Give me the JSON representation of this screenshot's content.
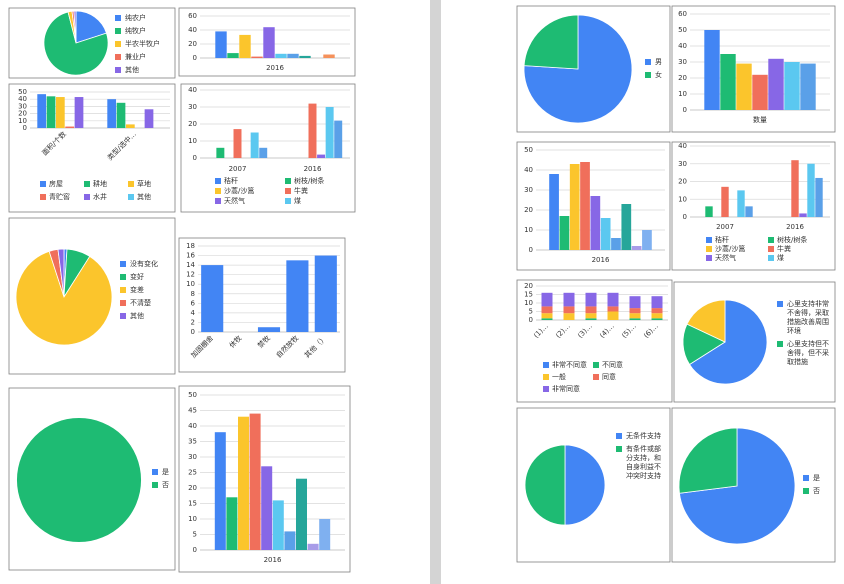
{
  "chart_data": [
    {
      "type": "pie",
      "categories": [
        "纯农户",
        "纯牧户",
        "半农半牧户",
        "兼业户",
        "其他"
      ],
      "values": [
        20,
        76,
        2,
        1,
        1
      ],
      "colors": [
        "#4285f4",
        "#1ebb73",
        "#fbc52c",
        "#f06f5b",
        "#8767e6"
      ],
      "legend": "right"
    },
    {
      "type": "bar",
      "categories": [
        "2016"
      ],
      "ylim": [
        0,
        60
      ],
      "yticks": [
        0,
        20,
        40,
        60
      ],
      "grid": true,
      "series": [
        {
          "color": "#4285f4",
          "values": [
            38
          ]
        },
        {
          "color": "#1ebb73",
          "values": [
            7
          ]
        },
        {
          "color": "#fbc52c",
          "values": [
            33
          ]
        },
        {
          "color": "#f06f5b",
          "values": [
            2
          ]
        },
        {
          "color": "#8767e6",
          "values": [
            44
          ]
        },
        {
          "color": "#5bc8f0",
          "values": [
            6
          ]
        },
        {
          "color": "#5aa0e8",
          "values": [
            6
          ]
        },
        {
          "color": "#26a69a",
          "values": [
            3
          ]
        },
        {
          "color": "#a89ce8",
          "values": [
            0
          ]
        },
        {
          "color": "#f5915b",
          "values": [
            5
          ]
        }
      ]
    },
    {
      "type": "bar",
      "categories": [
        "面积/个数",
        "类型/选中..."
      ],
      "ylim": [
        0,
        50
      ],
      "yticks": [
        0,
        10,
        20,
        30,
        40,
        50
      ],
      "grid": true,
      "rotate_labels": true,
      "legend": "bottom",
      "series": [
        {
          "name": "房屋",
          "color": "#4285f4",
          "values": [
            47,
            40
          ]
        },
        {
          "name": "耕地",
          "color": "#1ebb73",
          "values": [
            44,
            35
          ]
        },
        {
          "name": "草地",
          "color": "#fbc52c",
          "values": [
            43,
            5
          ]
        },
        {
          "name": "青贮窖",
          "color": "#f06f5b",
          "values": [
            2,
            0
          ]
        },
        {
          "name": "水井",
          "color": "#8767e6",
          "values": [
            43,
            26
          ]
        },
        {
          "name": "其他",
          "color": "#5bc8f0",
          "values": [
            0,
            0
          ]
        }
      ]
    },
    {
      "type": "bar",
      "categories": [
        "2007",
        "2016"
      ],
      "ylim": [
        0,
        40
      ],
      "yticks": [
        0,
        10,
        20,
        30,
        40
      ],
      "grid": true,
      "legend": "bottom",
      "series": [
        {
          "name": "秸秆",
          "color": "#4285f4",
          "values": [
            0,
            0
          ]
        },
        {
          "name": "树枝/树条",
          "color": "#1ebb73",
          "values": [
            6,
            0
          ]
        },
        {
          "name": "沙蒿/沙篙",
          "color": "#fbc52c",
          "values": [
            0,
            0
          ]
        },
        {
          "name": "牛粪",
          "color": "#f06f5b",
          "values": [
            17,
            32
          ]
        },
        {
          "name": "天然气",
          "color": "#8767e6",
          "values": [
            0,
            2
          ]
        },
        {
          "name": "煤",
          "color": "#5bc8f0",
          "values": [
            15,
            30
          ]
        },
        {
          "color": "#5aa0e8",
          "values": [
            6,
            22
          ]
        }
      ]
    },
    {
      "type": "pie",
      "categories": [
        "没有变化",
        "变好",
        "变差",
        "不清楚",
        "其他"
      ],
      "values": [
        1,
        8,
        86,
        3,
        2
      ],
      "colors": [
        "#4285f4",
        "#1ebb73",
        "#fbc52c",
        "#f06f5b",
        "#8767e6"
      ],
      "legend": "right"
    },
    {
      "type": "bar",
      "categories": [
        "加固棚舍",
        "休牧",
        "禁牧",
        "自然放牧",
        "其他（）"
      ],
      "ylim": [
        0,
        18
      ],
      "yticks": [
        0,
        2,
        4,
        6,
        8,
        10,
        12,
        14,
        16,
        18
      ],
      "grid": true,
      "rotate_labels": true,
      "series": [
        {
          "color": "#4285f4",
          "values": [
            14,
            0,
            1,
            15,
            16
          ]
        }
      ]
    },
    {
      "type": "pie",
      "categories": [
        "是",
        "否"
      ],
      "values": [
        0,
        100
      ],
      "colors": [
        "#4285f4",
        "#1ebb73"
      ],
      "legend": "right"
    },
    {
      "type": "bar",
      "categories": [
        "2016"
      ],
      "ylim": [
        0,
        50
      ],
      "yticks": [
        0,
        5,
        10,
        15,
        20,
        25,
        30,
        35,
        40,
        45,
        50
      ],
      "grid": true,
      "series": [
        {
          "color": "#4285f4",
          "values": [
            38
          ]
        },
        {
          "color": "#1ebb73",
          "values": [
            17
          ]
        },
        {
          "color": "#fbc52c",
          "values": [
            43
          ]
        },
        {
          "color": "#f06f5b",
          "values": [
            44
          ]
        },
        {
          "color": "#8767e6",
          "values": [
            27
          ]
        },
        {
          "color": "#5bc8f0",
          "values": [
            16
          ]
        },
        {
          "color": "#5aa0e8",
          "values": [
            6
          ]
        },
        {
          "color": "#26a69a",
          "values": [
            23
          ]
        },
        {
          "color": "#a89ce8",
          "values": [
            2
          ]
        },
        {
          "color": "#7fb0f0",
          "values": [
            10
          ]
        }
      ]
    },
    {
      "type": "pie",
      "categories": [
        "男",
        "女"
      ],
      "values": [
        76,
        24
      ],
      "colors": [
        "#4285f4",
        "#1ebb73"
      ],
      "legend": "right"
    },
    {
      "type": "bar",
      "categories": [
        "数量"
      ],
      "ylim": [
        0,
        60
      ],
      "yticks": [
        0,
        10,
        20,
        30,
        40,
        50,
        60
      ],
      "grid": true,
      "series": [
        {
          "color": "#4285f4",
          "values": [
            50
          ]
        },
        {
          "color": "#1ebb73",
          "values": [
            35
          ]
        },
        {
          "color": "#fbc52c",
          "values": [
            29
          ]
        },
        {
          "color": "#f06f5b",
          "values": [
            22
          ]
        },
        {
          "color": "#8767e6",
          "values": [
            32
          ]
        },
        {
          "color": "#5bc8f0",
          "values": [
            30
          ]
        },
        {
          "color": "#5aa0e8",
          "values": [
            29
          ]
        }
      ]
    },
    {
      "type": "bar",
      "categories": [
        "2016"
      ],
      "ylim": [
        0,
        50
      ],
      "yticks": [
        0,
        10,
        20,
        30,
        40,
        50
      ],
      "grid": true,
      "series": [
        {
          "color": "#4285f4",
          "values": [
            38
          ]
        },
        {
          "color": "#1ebb73",
          "values": [
            17
          ]
        },
        {
          "color": "#fbc52c",
          "values": [
            43
          ]
        },
        {
          "color": "#f06f5b",
          "values": [
            44
          ]
        },
        {
          "color": "#8767e6",
          "values": [
            27
          ]
        },
        {
          "color": "#5bc8f0",
          "values": [
            16
          ]
        },
        {
          "color": "#5aa0e8",
          "values": [
            6
          ]
        },
        {
          "color": "#26a69a",
          "values": [
            23
          ]
        },
        {
          "color": "#a89ce8",
          "values": [
            2
          ]
        },
        {
          "color": "#7fb0f0",
          "values": [
            10
          ]
        }
      ]
    },
    {
      "type": "bar",
      "categories": [
        "2007",
        "2016"
      ],
      "ylim": [
        0,
        40
      ],
      "yticks": [
        0,
        10,
        20,
        30,
        40
      ],
      "grid": true,
      "legend": "bottom",
      "series": [
        {
          "name": "秸秆",
          "color": "#4285f4",
          "values": [
            0,
            0
          ]
        },
        {
          "name": "树枝/树条",
          "color": "#1ebb73",
          "values": [
            6,
            0
          ]
        },
        {
          "name": "沙蒿/沙篙",
          "color": "#fbc52c",
          "values": [
            0,
            0
          ]
        },
        {
          "name": "牛粪",
          "color": "#f06f5b",
          "values": [
            17,
            32
          ]
        },
        {
          "name": "天然气",
          "color": "#8767e6",
          "values": [
            0,
            2
          ]
        },
        {
          "name": "煤",
          "color": "#5bc8f0",
          "values": [
            15,
            30
          ]
        },
        {
          "color": "#5aa0e8",
          "values": [
            6,
            22
          ]
        }
      ]
    },
    {
      "type": "stacked_bar",
      "categories": [
        "(1)…",
        "(2)…",
        "(3)…",
        "(4)…",
        "(5)…",
        "(6)…"
      ],
      "ylim": [
        0,
        20
      ],
      "yticks": [
        0,
        5,
        10,
        15,
        20
      ],
      "grid": true,
      "rotate_labels": true,
      "legend": "bottom",
      "series": [
        {
          "name": "非常不同意",
          "color": "#4285f4",
          "values": [
            0,
            0,
            0,
            0,
            0,
            0
          ]
        },
        {
          "name": "不同意",
          "color": "#1ebb73",
          "values": [
            1,
            0,
            1,
            0,
            1,
            1
          ]
        },
        {
          "name": "一般",
          "color": "#fbc52c",
          "values": [
            3,
            4,
            3,
            5,
            3,
            3
          ]
        },
        {
          "name": "同意",
          "color": "#f06f5b",
          "values": [
            4,
            4,
            4,
            3,
            3,
            3
          ]
        },
        {
          "name": "非常同意",
          "color": "#8767e6",
          "values": [
            8,
            8,
            8,
            8,
            7,
            7
          ]
        }
      ]
    },
    {
      "type": "pie",
      "categories": [
        "心里支持非常不舍得，采取措施改善周围环境",
        "心里支持但不舍得，但不采取措施",
        null
      ],
      "values": [
        66,
        16,
        18
      ],
      "colors": [
        "#4285f4",
        "#1ebb73",
        "#fbc52c"
      ],
      "legend": "right"
    },
    {
      "type": "pie",
      "categories": [
        "无条件支持",
        "有条件或部分支持，和自身利益不冲突时支持"
      ],
      "values": [
        50,
        50
      ],
      "colors": [
        "#4285f4",
        "#1ebb73"
      ],
      "legend": "right"
    },
    {
      "type": "pie",
      "categories": [
        "是",
        "否"
      ],
      "values": [
        73,
        27
      ],
      "colors": [
        "#4285f4",
        "#1ebb73"
      ],
      "legend": "right"
    }
  ]
}
